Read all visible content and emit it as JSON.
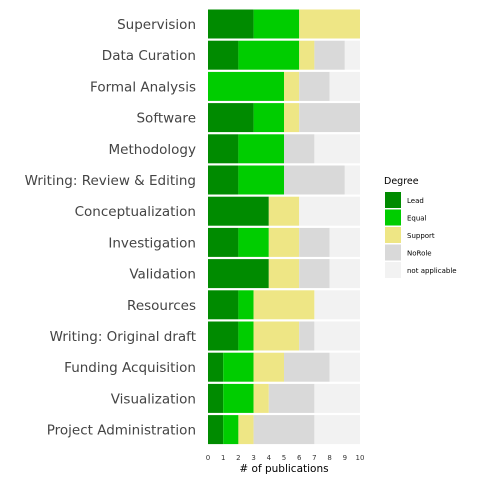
{
  "chart_data": {
    "type": "bar",
    "orientation": "horizontal",
    "stacked": true,
    "categories": [
      "Supervision",
      "Data Curation",
      "Formal Analysis",
      "Software",
      "Methodology",
      "Writing: Review & Editing",
      "Conceptualization",
      "Investigation",
      "Validation",
      "Resources",
      "Writing: Original draft",
      "Funding Acquisition",
      "Visualization",
      "Project Administration"
    ],
    "series": [
      {
        "name": "Lead",
        "color": "#008b00",
        "values": [
          3,
          2,
          0,
          3,
          2,
          2,
          4,
          2,
          4,
          2,
          2,
          1,
          1,
          1
        ]
      },
      {
        "name": "Equal",
        "color": "#00cd00",
        "values": [
          3,
          4,
          5,
          2,
          3,
          3,
          0,
          2,
          0,
          1,
          1,
          2,
          2,
          1
        ]
      },
      {
        "name": "Support",
        "color": "#eee685",
        "values": [
          4,
          1,
          1,
          1,
          0,
          0,
          2,
          2,
          2,
          4,
          3,
          2,
          1,
          1
        ]
      },
      {
        "name": "NoRole",
        "color": "#d9d9d9",
        "values": [
          0,
          2,
          2,
          4,
          2,
          4,
          0,
          2,
          2,
          0,
          1,
          3,
          3,
          4
        ]
      },
      {
        "name": "not applicable",
        "color": "#f2f2f2",
        "values": [
          0,
          1,
          2,
          0,
          3,
          1,
          4,
          2,
          2,
          3,
          3,
          2,
          3,
          3
        ]
      }
    ],
    "xlabel": "# of publications",
    "ylabel": "",
    "xlim": [
      0,
      10
    ],
    "xticks": [
      0,
      1,
      2,
      3,
      4,
      5,
      6,
      7,
      8,
      9,
      10
    ],
    "legend": {
      "title": "Degree",
      "position": "right"
    },
    "grid": false
  }
}
